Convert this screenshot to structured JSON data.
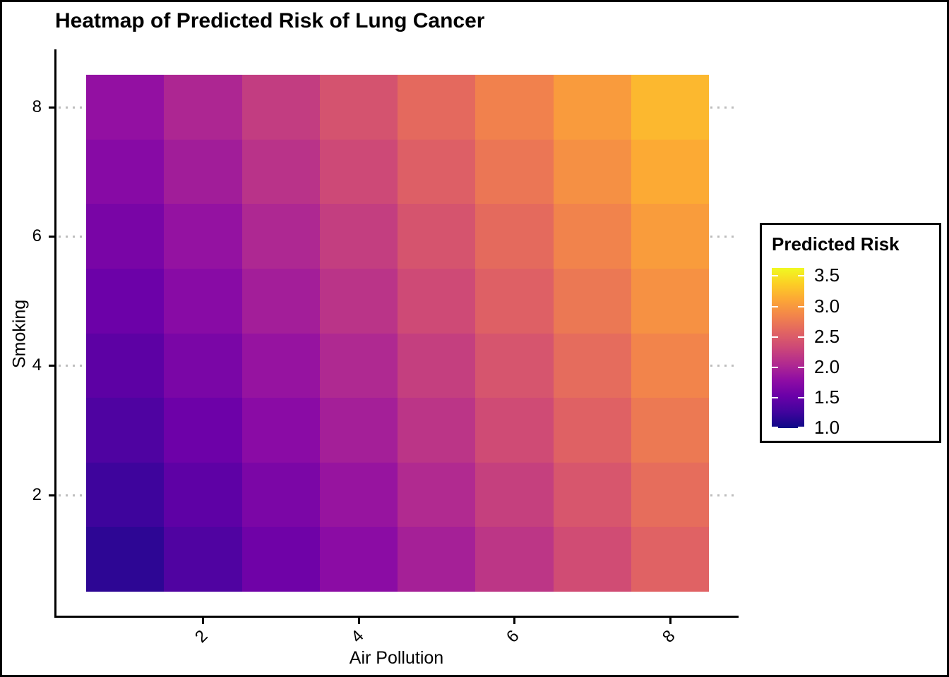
{
  "title": "Heatmap of Predicted Risk of Lung Cancer",
  "chart_data": {
    "type": "heatmap",
    "title": "Heatmap of Predicted Risk of Lung Cancer",
    "xlabel": "Air Pollution",
    "ylabel": "Smoking",
    "x_categories": [
      1,
      2,
      3,
      4,
      5,
      6,
      7,
      8
    ],
    "y_categories": [
      1,
      2,
      3,
      4,
      5,
      6,
      7,
      8
    ],
    "x_tick_labels": [
      "2",
      "4",
      "6",
      "8"
    ],
    "y_tick_labels": [
      "2",
      "4",
      "6",
      "8"
    ],
    "values_note": "rows ordered smoking=1 (bottom) to smoking=8 (top); columns air_pollution=1..8",
    "values": [
      [
        1.15,
        1.35,
        1.55,
        1.75,
        1.95,
        2.15,
        2.35,
        2.55
      ],
      [
        1.24,
        1.44,
        1.64,
        1.84,
        2.04,
        2.24,
        2.44,
        2.64
      ],
      [
        1.34,
        1.54,
        1.74,
        1.94,
        2.14,
        2.34,
        2.54,
        2.74
      ],
      [
        1.43,
        1.63,
        1.83,
        2.03,
        2.23,
        2.43,
        2.63,
        2.83
      ],
      [
        1.53,
        1.73,
        1.93,
        2.13,
        2.33,
        2.53,
        2.73,
        2.93
      ],
      [
        1.62,
        1.82,
        2.02,
        2.22,
        2.42,
        2.62,
        2.82,
        3.02
      ],
      [
        1.72,
        1.92,
        2.12,
        2.32,
        2.52,
        2.72,
        2.92,
        3.12
      ],
      [
        1.81,
        2.01,
        2.21,
        2.41,
        2.61,
        2.81,
        3.01,
        3.21
      ]
    ],
    "legend": {
      "title": "Predicted Risk",
      "tick_labels": [
        "3.5",
        "3.0",
        "2.5",
        "2.0",
        "1.5",
        "1.0"
      ],
      "tick_values": [
        3.5,
        3.0,
        2.5,
        2.0,
        1.5,
        1.0
      ],
      "color_domain": [
        0.99,
        3.62
      ],
      "position": "right"
    },
    "colormap": {
      "name": "plasma",
      "stops": [
        "#0D0887",
        "#41049D",
        "#6A00A8",
        "#8F0DA4",
        "#B12A90",
        "#CC4778",
        "#E16462",
        "#F2844B",
        "#FCA636",
        "#FCCE25",
        "#F0F921"
      ]
    },
    "grid": {
      "style": "dotted",
      "color": "#BDBDBD",
      "y_major_at": [
        2,
        4,
        6,
        8
      ]
    },
    "axis_color": "#000000",
    "background_color": "#FFFFFF"
  }
}
